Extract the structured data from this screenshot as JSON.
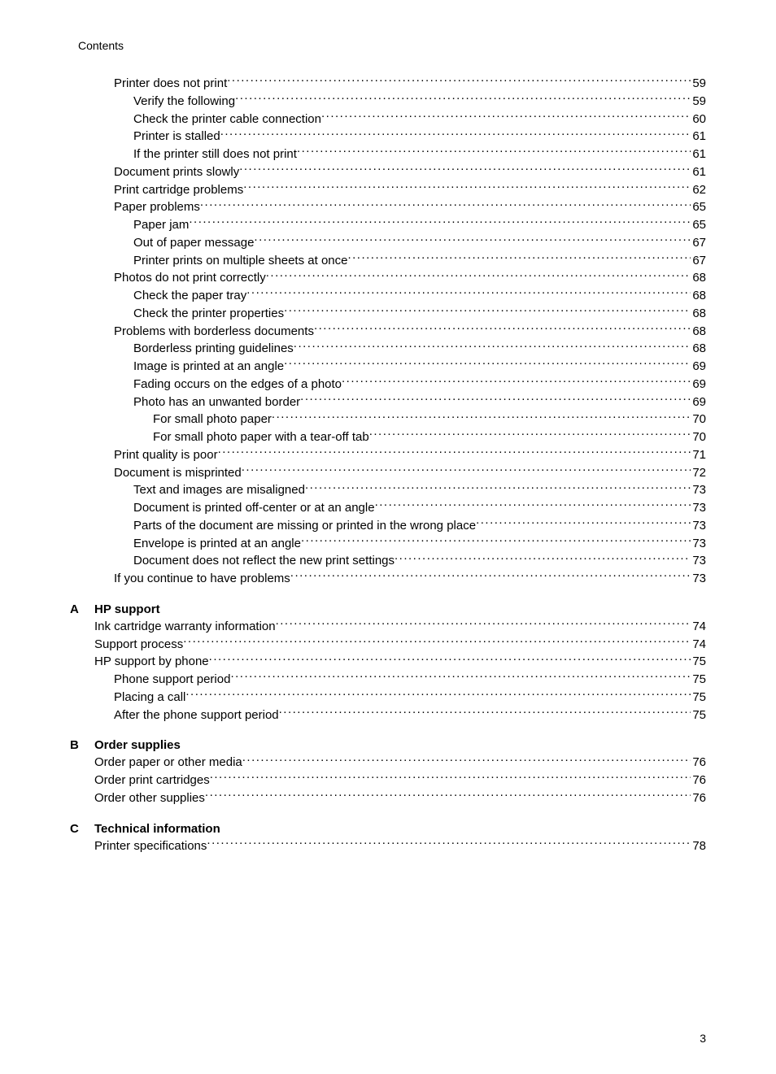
{
  "running_head": "Contents",
  "page_number": "3",
  "main_entries": [
    {
      "label": "Printer does not print",
      "page": "59",
      "indent": 1
    },
    {
      "label": "Verify the following",
      "page": "59",
      "indent": 2
    },
    {
      "label": "Check the printer cable connection",
      "page": "60",
      "indent": 2
    },
    {
      "label": "Printer is stalled",
      "page": "61",
      "indent": 2
    },
    {
      "label": "If the printer still does not print",
      "page": "61",
      "indent": 2
    },
    {
      "label": "Document prints slowly",
      "page": "61",
      "indent": 1
    },
    {
      "label": "Print cartridge problems",
      "page": "62",
      "indent": 1
    },
    {
      "label": "Paper problems",
      "page": "65",
      "indent": 1
    },
    {
      "label": "Paper jam",
      "page": "65",
      "indent": 2
    },
    {
      "label": "Out of paper message",
      "page": "67",
      "indent": 2
    },
    {
      "label": "Printer prints on multiple sheets at once",
      "page": "67",
      "indent": 2
    },
    {
      "label": "Photos do not print correctly",
      "page": "68",
      "indent": 1
    },
    {
      "label": "Check the paper tray",
      "page": "68",
      "indent": 2
    },
    {
      "label": "Check the printer properties",
      "page": "68",
      "indent": 2
    },
    {
      "label": "Problems with borderless documents",
      "page": "68",
      "indent": 1
    },
    {
      "label": "Borderless printing guidelines",
      "page": "68",
      "indent": 2
    },
    {
      "label": "Image is printed at an angle",
      "page": "69",
      "indent": 2
    },
    {
      "label": "Fading occurs on the edges of a photo",
      "page": "69",
      "indent": 2
    },
    {
      "label": "Photo has an unwanted border",
      "page": "69",
      "indent": 2
    },
    {
      "label": "For small photo paper",
      "page": "70",
      "indent": 3
    },
    {
      "label": "For small photo paper with a tear-off tab",
      "page": "70",
      "indent": 3
    },
    {
      "label": "Print quality is poor",
      "page": "71",
      "indent": 1
    },
    {
      "label": "Document is misprinted",
      "page": "72",
      "indent": 1
    },
    {
      "label": "Text and images are misaligned",
      "page": "73",
      "indent": 2
    },
    {
      "label": "Document is printed off-center or at an angle",
      "page": "73",
      "indent": 2
    },
    {
      "label": "Parts of the document are missing or printed in the wrong place",
      "page": "73",
      "indent": 2
    },
    {
      "label": "Envelope is printed at an angle",
      "page": "73",
      "indent": 2
    },
    {
      "label": "Document does not reflect the new print settings ",
      "page": "73",
      "indent": 2
    },
    {
      "label": "If you continue to have problems",
      "page": "73",
      "indent": 1
    }
  ],
  "sections": [
    {
      "letter": "A",
      "title": "HP support",
      "entries": [
        {
          "label": "Ink cartridge warranty information",
          "page": "74",
          "indent": 0
        },
        {
          "label": "Support process",
          "page": "74",
          "indent": 0
        },
        {
          "label": "HP support by phone",
          "page": "75",
          "indent": 0
        },
        {
          "label": "Phone support period",
          "page": "75",
          "indent": 1
        },
        {
          "label": "Placing a call",
          "page": "75",
          "indent": 1
        },
        {
          "label": "After the phone support period",
          "page": "75",
          "indent": 1
        }
      ]
    },
    {
      "letter": "B",
      "title": "Order supplies",
      "entries": [
        {
          "label": "Order paper or other media",
          "page": "76",
          "indent": 0
        },
        {
          "label": "Order print cartridges",
          "page": "76",
          "indent": 0
        },
        {
          "label": "Order other supplies",
          "page": "76",
          "indent": 0
        }
      ]
    },
    {
      "letter": "C",
      "title": "Technical information",
      "entries": [
        {
          "label": "Printer specifications",
          "page": "78",
          "indent": 0
        }
      ]
    }
  ]
}
